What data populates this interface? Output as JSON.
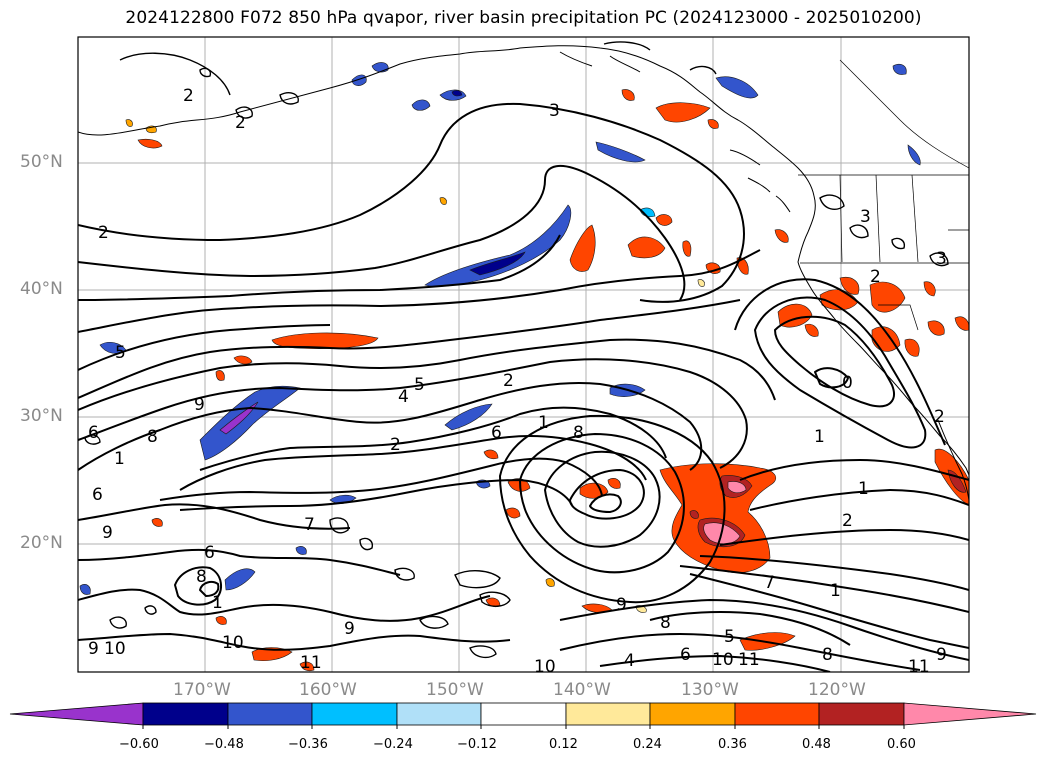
{
  "title": "2024122800 F072 850 hPa qvapor, river basin precipitation PC (2024123000 - 2025010200)",
  "lat_labels": [
    "50°N",
    "40°N",
    "30°N",
    "20°N"
  ],
  "lon_labels": [
    "170°W",
    "160°W",
    "150°W",
    "140°W",
    "130°W",
    "120°W"
  ],
  "colorbar": {
    "colors": [
      "#9933cc",
      "#00008b",
      "#3355cc",
      "#00bfff",
      "#b0e0f8",
      "#ffffff",
      "#ffe99a",
      "#ffa500",
      "#ff4500",
      "#b22222",
      "#ff88aa"
    ],
    "tick_labels": [
      "−0.60",
      "−0.48",
      "−0.36",
      "−0.24",
      "−0.12",
      "0.12",
      "0.24",
      "0.36",
      "0.48",
      "0.60"
    ]
  },
  "contour_labels": [
    "2",
    "2",
    "3",
    "2",
    "5",
    "4",
    "5",
    "2",
    "2",
    "1",
    "6",
    "6",
    "8",
    "9",
    "1",
    "6",
    "9",
    "7",
    "8",
    "1",
    "10",
    "9",
    "10",
    "11",
    "6",
    "8",
    "1",
    "1",
    "2",
    "0",
    "9",
    "8",
    "7",
    "5",
    "10",
    "11",
    "6",
    "4",
    "10",
    "8",
    "9",
    "9",
    "11",
    "3",
    "3",
    "2",
    "1",
    "2"
  ]
}
